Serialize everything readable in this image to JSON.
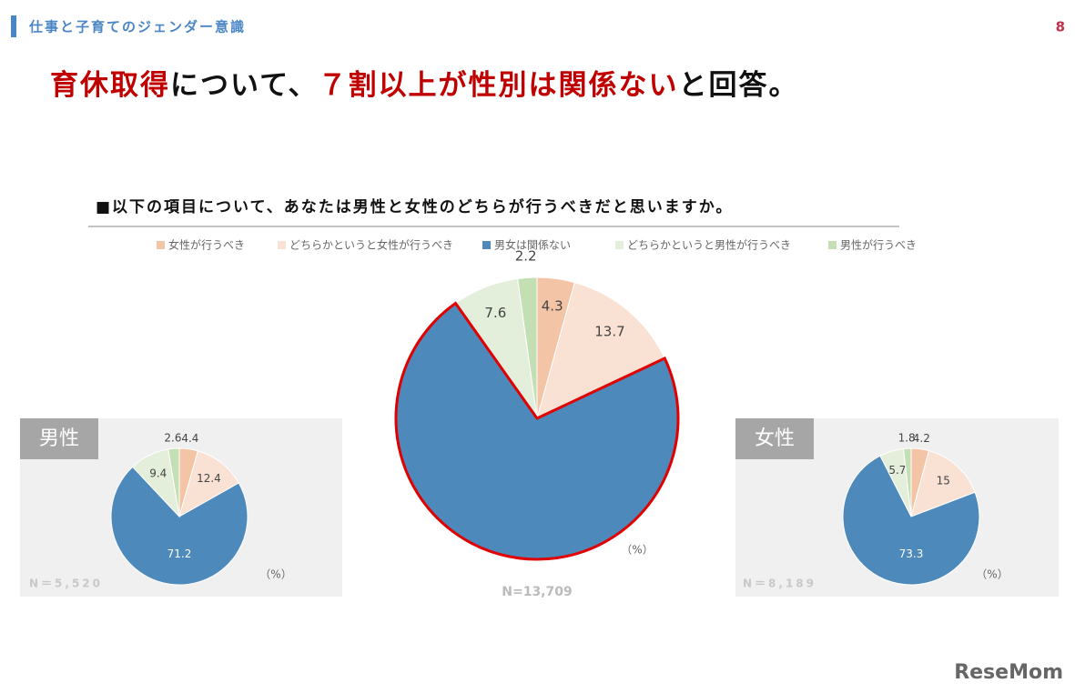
{
  "header": {
    "section": "仕事と子育てのジェンダー意識",
    "page": "8"
  },
  "title": [
    {
      "text": "育休取得",
      "color": "#c00000"
    },
    {
      "text": "について、",
      "color": "#111111"
    },
    {
      "text": "７割以上が性別は関係ない",
      "color": "#c00000"
    },
    {
      "text": "と回答。",
      "color": "#111111"
    }
  ],
  "question": "■以下の項目について、あなたは男性と女性のどちらが行うべきだと思いますか。",
  "logo": "ReseMom",
  "chart_data": [
    {
      "type": "pie",
      "categories": [
        "女性が行うべき",
        "どちらかというと女性が行うべき",
        "男女は関係ない",
        "どちらかというと男性が行うべき",
        "男性が行うべき"
      ],
      "values": [
        4.3,
        13.7,
        72.2,
        7.6,
        2.2
      ],
      "colors": [
        "#f4c4a6",
        "#f9e2d4",
        "#4d89bb",
        "#e3efdb",
        "#c4dfb3"
      ],
      "highlight": 2,
      "highlight_color": "#e00000",
      "annotations": [
        "男女は関係ない,"
      ],
      "unit": "（%）",
      "n": "N=13,709"
    },
    {
      "type": "pie",
      "label": "男性",
      "values": [
        4.4,
        12.4,
        71.2,
        9.4,
        2.6
      ],
      "unit": "（%）",
      "n": "N＝5,520"
    },
    {
      "type": "pie",
      "label": "女性",
      "values": [
        4.2,
        15.0,
        73.3,
        5.7,
        1.8
      ],
      "unit": "（%）",
      "n": "N＝8,189"
    }
  ]
}
